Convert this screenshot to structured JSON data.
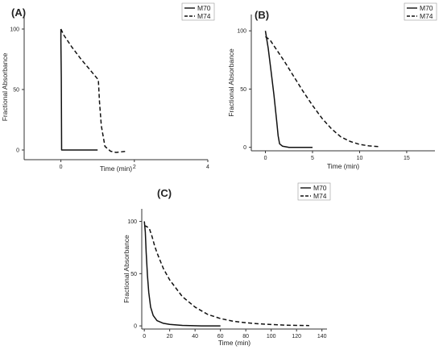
{
  "chart_data": [
    {
      "panel": "(A)",
      "type": "line",
      "xlabel": "Time (min)",
      "ylabel": "Fractional Absorbance",
      "xlim": [
        -1,
        4
      ],
      "ylim": [
        -8,
        112
      ],
      "xticks": [
        0,
        2,
        4
      ],
      "yticks": [
        0,
        50,
        100
      ],
      "legend": "top-right",
      "series": [
        {
          "name": "M70",
          "style": "solid",
          "x": [
            0,
            0,
            0.01,
            0.02,
            1.0
          ],
          "y": [
            100,
            90,
            60,
            0,
            0
          ]
        },
        {
          "name": "M74",
          "style": "dashed",
          "x": [
            0,
            0.08,
            0.3,
            0.55,
            0.8,
            1.02,
            1.05,
            1.1,
            1.2,
            1.35,
            1.5,
            1.8
          ],
          "y": [
            100,
            95,
            85,
            75,
            66,
            58,
            40,
            20,
            3,
            -1,
            -2,
            -1
          ]
        }
      ]
    },
    {
      "panel": "(B)",
      "type": "line",
      "xlabel": "Time (min)",
      "ylabel": "Fractional Absorbance",
      "xlim": [
        -1.5,
        18
      ],
      "ylim": [
        -3,
        114
      ],
      "xticks": [
        0,
        5,
        10,
        15
      ],
      "yticks": [
        0,
        50,
        100
      ],
      "legend": "top-right",
      "series": [
        {
          "name": "M70",
          "style": "solid",
          "x": [
            0,
            0.3,
            0.6,
            0.9,
            1.2,
            1.35,
            1.5,
            1.8,
            2.5,
            5
          ],
          "y": [
            100,
            85,
            65,
            45,
            22,
            10,
            3,
            1,
            0,
            0
          ]
        },
        {
          "name": "M74",
          "style": "dashed",
          "x": [
            0,
            0.5,
            1,
            2,
            3,
            4,
            5,
            6,
            7,
            8,
            9,
            10,
            11,
            12
          ],
          "y": [
            95,
            92,
            86,
            74,
            61,
            48,
            36,
            25,
            16,
            9,
            5,
            2.5,
            1.2,
            0.6
          ]
        }
      ]
    },
    {
      "panel": "(C)",
      "type": "line",
      "xlabel": "Time (min)",
      "ylabel": "Fractional Absorbance",
      "xlim": [
        -2,
        144
      ],
      "ylim": [
        -3,
        112
      ],
      "xticks": [
        0,
        20,
        40,
        60,
        80,
        100,
        120,
        140
      ],
      "yticks": [
        0,
        50,
        100
      ],
      "legend": "top-right",
      "series": [
        {
          "name": "M70",
          "style": "solid",
          "x": [
            0,
            0.8,
            1.5,
            2.5,
            3.5,
            5,
            7,
            10,
            15,
            20,
            30,
            45,
            60
          ],
          "y": [
            100,
            90,
            70,
            48,
            32,
            18,
            10,
            5,
            2.5,
            1.5,
            0.5,
            0,
            0
          ]
        },
        {
          "name": "M74",
          "style": "dashed",
          "x": [
            0,
            2,
            4,
            6,
            8,
            10,
            15,
            20,
            30,
            40,
            50,
            60,
            70,
            80,
            90,
            100,
            110,
            120,
            130
          ],
          "y": [
            96,
            95,
            93,
            86,
            77,
            70,
            55,
            44,
            28,
            18,
            11,
            7,
            4.5,
            3,
            2,
            1.3,
            0.8,
            0.5,
            0.3
          ]
        }
      ]
    }
  ]
}
